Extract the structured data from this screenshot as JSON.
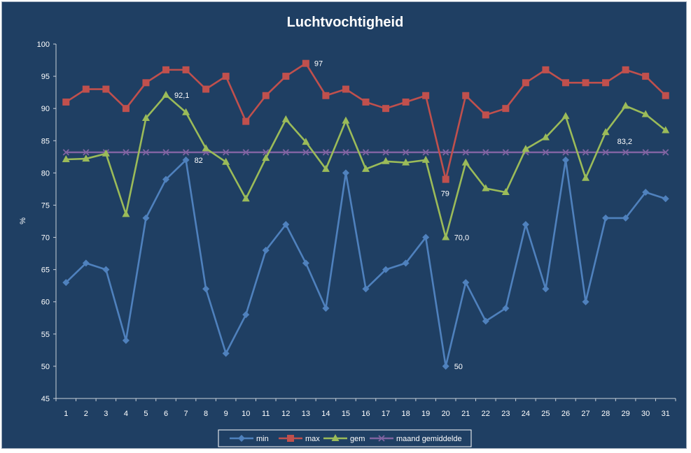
{
  "chart_data": {
    "type": "line",
    "title": "Luchtvochtigheid",
    "xlabel": "",
    "ylabel": "%",
    "ylim": [
      45,
      100
    ],
    "y_ticks": [
      45,
      50,
      55,
      60,
      65,
      70,
      75,
      80,
      85,
      90,
      95,
      100
    ],
    "categories": [
      "1",
      "2",
      "3",
      "4",
      "5",
      "6",
      "7",
      "8",
      "9",
      "10",
      "11",
      "12",
      "13",
      "14",
      "15",
      "16",
      "17",
      "18",
      "19",
      "20",
      "21",
      "22",
      "23",
      "24",
      "25",
      "26",
      "27",
      "28",
      "29",
      "30",
      "31"
    ],
    "grid": false,
    "legend_position": "bottom",
    "series": [
      {
        "name": "min",
        "color": "#4f81bd",
        "marker": "diamond",
        "values": [
          63,
          66,
          65,
          54,
          73,
          79,
          82,
          62,
          52,
          58,
          68,
          72,
          66,
          59,
          80,
          62,
          65,
          66,
          70,
          50,
          63,
          57,
          59,
          72,
          62,
          82,
          60,
          73,
          73,
          77,
          76
        ]
      },
      {
        "name": "max",
        "color": "#c0504d",
        "marker": "square",
        "values": [
          91,
          93,
          93,
          90,
          94,
          96,
          96,
          93,
          95,
          88,
          92,
          95,
          97,
          92,
          93,
          91,
          90,
          91,
          92,
          79,
          92,
          89,
          90,
          94,
          96,
          94,
          94,
          94,
          96,
          95,
          92
        ]
      },
      {
        "name": "gem",
        "color": "#9bbb59",
        "marker": "triangle",
        "values": [
          82.1,
          82.2,
          83,
          73.6,
          88.5,
          92.1,
          89.4,
          83.8,
          81.7,
          76,
          82.3,
          88.3,
          84.8,
          80.6,
          88.1,
          80.6,
          81.8,
          81.6,
          82,
          70,
          81.6,
          77.6,
          77,
          83.7,
          85.5,
          88.8,
          79.2,
          86.3,
          90.4,
          89.1,
          86.6
        ]
      },
      {
        "name": "maand gemiddelde",
        "color": "#8064a2",
        "marker": "x",
        "values": [
          83.2,
          83.2,
          83.2,
          83.2,
          83.2,
          83.2,
          83.2,
          83.2,
          83.2,
          83.2,
          83.2,
          83.2,
          83.2,
          83.2,
          83.2,
          83.2,
          83.2,
          83.2,
          83.2,
          83.2,
          83.2,
          83.2,
          83.2,
          83.2,
          83.2,
          83.2,
          83.2,
          83.2,
          83.2,
          83.2,
          83.2
        ]
      }
    ],
    "annotations": [
      {
        "series": "gem",
        "category": "6",
        "text": "92,1"
      },
      {
        "series": "min",
        "category": "7",
        "text": "82"
      },
      {
        "series": "max",
        "category": "13",
        "text": "97"
      },
      {
        "series": "max",
        "category": "20",
        "text": "79"
      },
      {
        "series": "gem",
        "category": "20",
        "text": "70,0"
      },
      {
        "series": "min",
        "category": "20",
        "text": "50"
      },
      {
        "series": "maand gemiddelde",
        "category": "29",
        "text": "83,2"
      }
    ]
  }
}
